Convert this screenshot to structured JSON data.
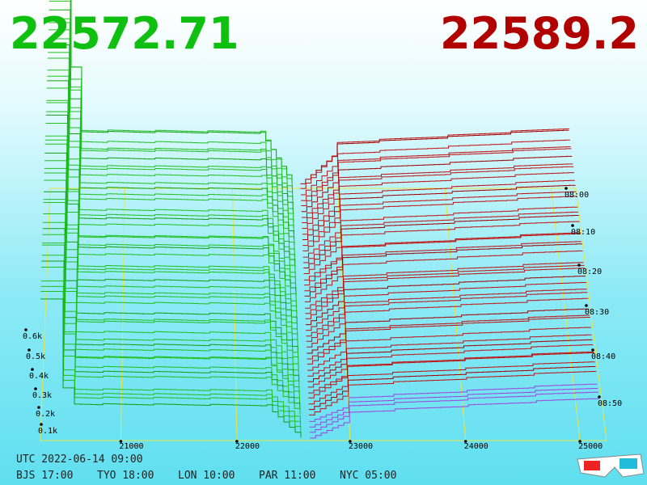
{
  "bid_price": "22572.71",
  "ask_price": "22589.2",
  "price_axis": [
    "21000",
    "22000",
    "23000",
    "24000",
    "25000"
  ],
  "time_axis": [
    "08:00",
    "08:10",
    "08:20",
    "08:30",
    "08:40",
    "08:50"
  ],
  "volume_axis": [
    "0.6k",
    "0.5k",
    "0.4k",
    "0.3k",
    "0.2k",
    "0.1k"
  ],
  "clock": {
    "utc": "UTC 2022-06-14 09:00",
    "zones": [
      "BJS 17:00",
      "TYO 18:00",
      "LON 10:00",
      "PAR 11:00",
      "NYC 05:00"
    ]
  }
}
